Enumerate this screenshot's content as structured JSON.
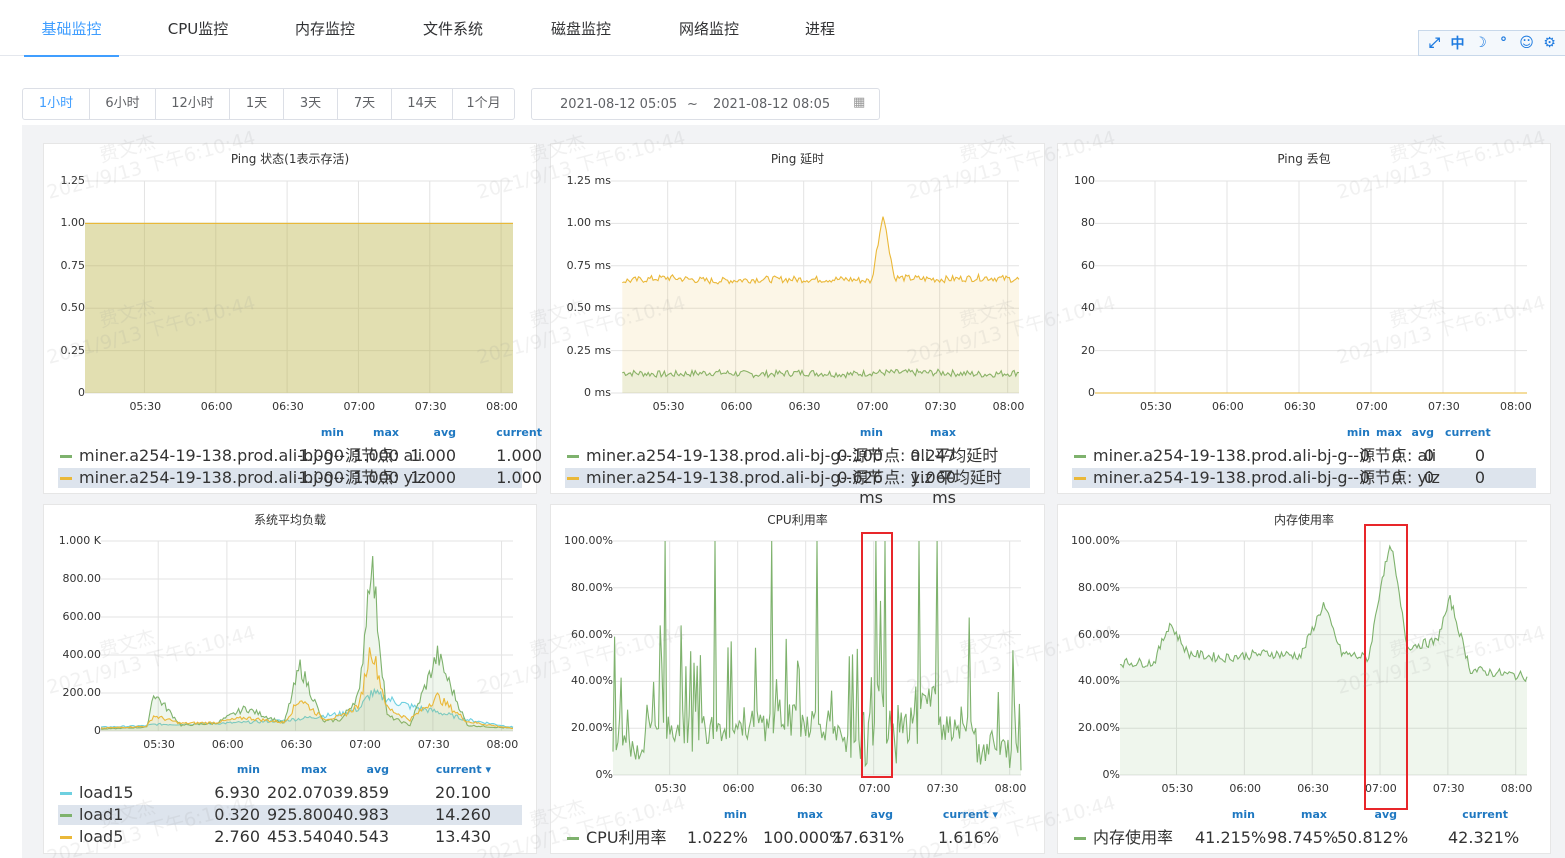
{
  "tabs": [
    "基础监控",
    "CPU监控",
    "内存监控",
    "文件系统",
    "磁盘监控",
    "网络监控",
    "进程"
  ],
  "toolbar_icons": [
    "expand-icon",
    "中",
    "moon-icon",
    "dots-icon",
    "user-icon",
    "gear-icon"
  ],
  "toolbar_text": {
    "lang": "中"
  },
  "range": {
    "options": [
      "1小时",
      "6小时",
      "12小时",
      "1天",
      "3天",
      "7天",
      "14天",
      "1个月"
    ],
    "selected": "1小时",
    "start": "2021-08-12 05:05",
    "sep": "~",
    "end": "2021-08-12 08:05"
  },
  "watermark": {
    "name": "费文杰",
    "time": "2021/9/13 下午6:10:44"
  },
  "x_ticks": [
    "05:30",
    "06:00",
    "06:30",
    "07:00",
    "07:30",
    "08:00"
  ],
  "colors": {
    "green": "#7eb26d",
    "yellow": "#eab839",
    "blue": "#6ed0e0",
    "accent": "#409eff",
    "legend_head": "#1f78c1",
    "highlight": "#e8262a"
  },
  "panels": {
    "ping_status": {
      "title": "Ping 状态(1表示存活)",
      "yticks": [
        "1.25",
        "1.00",
        "0.75",
        "0.50",
        "0.25",
        "0"
      ],
      "headers": [
        "min",
        "max",
        "avg",
        "current"
      ],
      "rows": [
        {
          "name": "miner.a254-19-138.prod.ali-bj-g--源节点: ali",
          "color": "#7eb26d",
          "vals": [
            "1.000",
            "1.000",
            "1.000",
            "1.000"
          ]
        },
        {
          "name": "miner.a254-19-138.prod.ali-bj-g--源节点: yiz",
          "color": "#eab839",
          "vals": [
            "1.000",
            "1.000",
            "1.000",
            "1.000"
          ]
        }
      ]
    },
    "ping_latency": {
      "title": "Ping 延时",
      "yticks": [
        "1.25 ms",
        "1.00 ms",
        "0.75 ms",
        "0.50 ms",
        "0.25 ms",
        "0 ms"
      ],
      "headers": [
        "min",
        "max"
      ],
      "rows": [
        {
          "name": "miner.a254-19-138.prod.ali-bj-g--源节点: ali 平均延时",
          "color": "#7eb26d",
          "vals": [
            "0.100 ms",
            "0.247 ms"
          ]
        },
        {
          "name": "miner.a254-19-138.prod.ali-bj-g--源节点: yiz 平均延时",
          "color": "#eab839",
          "vals": [
            "0.626 ms",
            "1.060 ms"
          ]
        }
      ]
    },
    "ping_loss": {
      "title": "Ping 丢包",
      "yticks": [
        "100",
        "80",
        "60",
        "40",
        "20",
        "0"
      ],
      "headers": [
        "min",
        "max",
        "avg",
        "current"
      ],
      "rows": [
        {
          "name": "miner.a254-19-138.prod.ali-bj-g--源节点: ali",
          "color": "#7eb26d",
          "vals": [
            "0",
            "0",
            "0",
            "0"
          ]
        },
        {
          "name": "miner.a254-19-138.prod.ali-bj-g--源节点: yiz",
          "color": "#eab839",
          "vals": [
            "0",
            "0",
            "0",
            "0"
          ]
        }
      ]
    },
    "load": {
      "title": "系统平均负载",
      "yticks": [
        "1.000 K",
        "800.00",
        "600.00",
        "400.00",
        "200.00",
        "0"
      ],
      "headers": [
        "min",
        "max",
        "avg",
        "current ▾"
      ],
      "rows": [
        {
          "name": "load15",
          "color": "#6ed0e0",
          "vals": [
            "6.930",
            "202.070",
            "39.859",
            "20.100"
          ]
        },
        {
          "name": "load1",
          "color": "#7eb26d",
          "vals": [
            "0.320",
            "925.800",
            "40.983",
            "14.260"
          ]
        },
        {
          "name": "load5",
          "color": "#eab839",
          "vals": [
            "2.760",
            "453.540",
            "40.543",
            "13.430"
          ]
        }
      ]
    },
    "cpu": {
      "title": "CPU利用率",
      "yticks": [
        "100.00%",
        "80.00%",
        "60.00%",
        "40.00%",
        "20.00%",
        "0%"
      ],
      "headers": [
        "min",
        "max",
        "avg",
        "current ▾"
      ],
      "rows": [
        {
          "name": "CPU利用率",
          "color": "#7eb26d",
          "vals": [
            "1.022%",
            "100.000%",
            "17.631%",
            "1.616%"
          ]
        }
      ]
    },
    "mem": {
      "title": "内存使用率",
      "yticks": [
        "100.00%",
        "80.00%",
        "60.00%",
        "40.00%",
        "20.00%",
        "0%"
      ],
      "headers": [
        "min",
        "max",
        "avg",
        "current"
      ],
      "rows": [
        {
          "name": "内存使用率",
          "color": "#7eb26d",
          "vals": [
            "41.215%",
            "98.745%",
            "50.812%",
            "42.321%"
          ]
        }
      ]
    }
  },
  "chart_data": [
    {
      "type": "area",
      "title": "Ping 状态(1表示存活)",
      "ylim": [
        0,
        1.25
      ],
      "x": [
        "05:05",
        "08:05"
      ],
      "series": [
        {
          "name": "miner.a254-19-138.prod.ali-bj-g--源节点: ali",
          "values": [
            1,
            1
          ]
        },
        {
          "name": "miner.a254-19-138.prod.ali-bj-g--源节点: yiz",
          "values": [
            1,
            1
          ]
        }
      ]
    },
    {
      "type": "area",
      "title": "Ping 延时",
      "ylim": [
        0,
        1.25
      ],
      "x": [
        "05:10",
        "05:30",
        "05:50",
        "06:10",
        "06:30",
        "06:50",
        "07:00",
        "07:05",
        "07:10",
        "07:30",
        "07:50",
        "08:05"
      ],
      "series": [
        {
          "name": "miner.a254-19-138.prod.ali-bj-g--源节点: ali 平均延时",
          "values": [
            0.12,
            0.11,
            0.12,
            0.11,
            0.12,
            0.11,
            0.12,
            0.12,
            0.12,
            0.12,
            0.11,
            0.12
          ]
        },
        {
          "name": "miner.a254-19-138.prod.ali-bj-g--源节点: yiz 平均延时",
          "values": [
            0.66,
            0.68,
            0.66,
            0.67,
            0.67,
            0.67,
            0.66,
            1.06,
            0.68,
            0.67,
            0.68,
            0.67
          ]
        }
      ]
    },
    {
      "type": "area",
      "title": "Ping 丢包",
      "ylim": [
        0,
        100
      ],
      "x": [
        "05:05",
        "08:05"
      ],
      "series": [
        {
          "name": "miner.a254-19-138.prod.ali-bj-g--源节点: ali",
          "values": [
            0,
            0
          ]
        },
        {
          "name": "miner.a254-19-138.prod.ali-bj-g--源节点: yiz",
          "values": [
            0,
            0
          ]
        }
      ]
    },
    {
      "type": "area",
      "title": "系统平均负载",
      "ylim": [
        0,
        1000
      ],
      "x": [
        "05:05",
        "05:25",
        "05:28",
        "05:40",
        "05:55",
        "06:08",
        "06:25",
        "06:32",
        "06:42",
        "06:50",
        "06:58",
        "07:03",
        "07:10",
        "07:20",
        "07:32",
        "07:45",
        "08:05"
      ],
      "series": [
        {
          "name": "load15",
          "values": [
            20,
            28,
            35,
            35,
            40,
            45,
            55,
            65,
            80,
            90,
            120,
            200,
            170,
            130,
            100,
            60,
            20
          ]
        },
        {
          "name": "load1",
          "values": [
            10,
            20,
            200,
            30,
            40,
            120,
            40,
            340,
            50,
            60,
            200,
            925,
            80,
            30,
            400,
            30,
            14
          ]
        },
        {
          "name": "load5",
          "values": [
            15,
            25,
            80,
            40,
            45,
            70,
            45,
            170,
            65,
            75,
            140,
            450,
            120,
            60,
            180,
            50,
            13
          ]
        }
      ]
    },
    {
      "type": "area",
      "title": "CPU利用率",
      "ylim": [
        0,
        100
      ],
      "x": [
        "05:05",
        "05:20",
        "05:28",
        "05:40",
        "05:50",
        "06:05",
        "06:15",
        "06:25",
        "06:35",
        "06:45",
        "06:57",
        "07:01",
        "07:05",
        "07:10",
        "07:20",
        "07:28",
        "07:45",
        "08:05"
      ],
      "series": [
        {
          "name": "CPU利用率",
          "values": [
            10,
            30,
            100,
            10,
            100,
            20,
            100,
            30,
            100,
            20,
            5,
            100,
            100,
            5,
            100,
            100,
            20,
            2
          ]
        }
      ]
    },
    {
      "type": "area",
      "title": "内存使用率",
      "ylim": [
        0,
        100
      ],
      "x": [
        "05:05",
        "05:20",
        "05:27",
        "05:35",
        "05:50",
        "06:10",
        "06:25",
        "06:35",
        "06:43",
        "06:55",
        "07:01",
        "07:05",
        "07:12",
        "07:25",
        "07:31",
        "07:40",
        "08:05"
      ],
      "series": [
        {
          "name": "内存使用率",
          "values": [
            48,
            48,
            65,
            52,
            50,
            52,
            51,
            73,
            52,
            50,
            85,
            98,
            55,
            57,
            75,
            45,
            42
          ]
        }
      ]
    }
  ]
}
